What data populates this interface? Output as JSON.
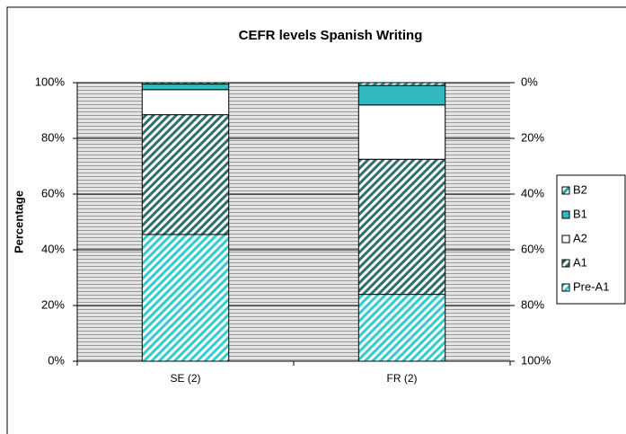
{
  "chart_data": {
    "type": "bar",
    "stacked": true,
    "title": "CEFR levels  Spanish Writing",
    "y_label": "Percentage",
    "categories": [
      "SE (2)",
      "FR (2)"
    ],
    "series": [
      {
        "name": "Pre-A1",
        "color": "#33cccc",
        "hatch": true,
        "values": [
          45.5,
          24
        ]
      },
      {
        "name": "A1",
        "color": "#2f6f6a",
        "hatch": true,
        "values": [
          43,
          48.5
        ]
      },
      {
        "name": "A2",
        "color": "#ffffff",
        "hatch": false,
        "values": [
          9,
          19.5
        ]
      },
      {
        "name": "B1",
        "color": "#33b8bf",
        "hatch": false,
        "values": [
          2,
          7
        ]
      },
      {
        "name": "B2",
        "color": "#2aa39a",
        "hatch": true,
        "values": [
          0.5,
          1
        ]
      }
    ],
    "ylim": [
      0,
      100
    ],
    "yticks": [
      {
        "value": 0,
        "label": "0%"
      },
      {
        "value": 20,
        "label": "20%"
      },
      {
        "value": 40,
        "label": "40%"
      },
      {
        "value": 60,
        "label": "60%"
      },
      {
        "value": 80,
        "label": "80%"
      },
      {
        "value": 100,
        "label": "100%"
      }
    ],
    "y2lim": [
      100,
      0
    ],
    "y2ticks": [
      {
        "value": 0,
        "label": "0%"
      },
      {
        "value": 20,
        "label": "20%"
      },
      {
        "value": 40,
        "label": "40%"
      },
      {
        "value": 60,
        "label": "60%"
      },
      {
        "value": 80,
        "label": "80%"
      },
      {
        "value": 100,
        "label": "100%"
      }
    ],
    "grid": true,
    "legend": "right"
  }
}
